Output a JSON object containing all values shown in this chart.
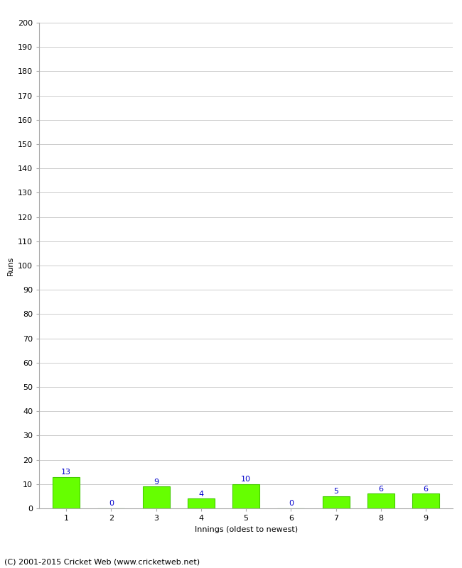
{
  "innings": [
    1,
    2,
    3,
    4,
    5,
    6,
    7,
    8,
    9
  ],
  "runs": [
    13,
    0,
    9,
    4,
    10,
    0,
    5,
    6,
    6
  ],
  "bar_color": "#66ff00",
  "bar_edge_color": "#44cc00",
  "label_color": "#0000cc",
  "ylabel": "Runs",
  "xlabel": "Innings (oldest to newest)",
  "ylim": [
    0,
    200
  ],
  "yticks": [
    0,
    10,
    20,
    30,
    40,
    50,
    60,
    70,
    80,
    90,
    100,
    110,
    120,
    130,
    140,
    150,
    160,
    170,
    180,
    190,
    200
  ],
  "background_color": "#ffffff",
  "grid_color": "#cccccc",
  "grid_linewidth": 0.7,
  "footer": "(C) 2001-2015 Cricket Web (www.cricketweb.net)",
  "tick_fontsize": 8,
  "label_fontsize": 8,
  "value_label_fontsize": 8,
  "footer_fontsize": 8
}
